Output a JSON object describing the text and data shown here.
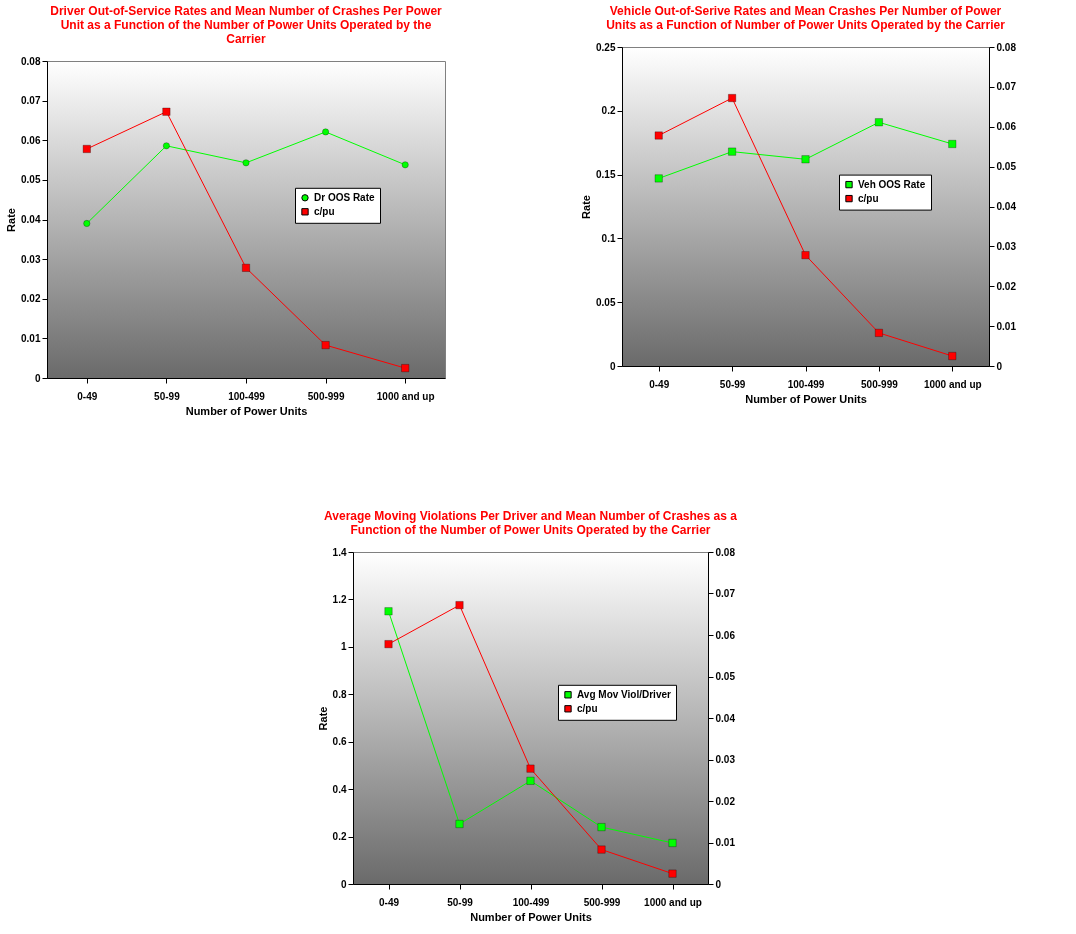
{
  "chart_data": [
    {
      "type": "line",
      "title": "Driver Out-of-Service Rates and Mean Number of Crashes Per Power Unit as a Function of the Number of Power Units Operated by the Carrier",
      "xlabel": "Number of Power Units",
      "ylabel": "Rate",
      "categories": [
        "0-49",
        "50-99",
        "100-499",
        "500-999",
        "1000 and up"
      ],
      "ylim": [
        0,
        0.08
      ],
      "yticks": [
        0,
        0.01,
        0.02,
        0.03,
        0.04,
        0.05,
        0.06,
        0.07,
        0.08
      ],
      "legend": "right",
      "grid": false,
      "series": [
        {
          "name": "Dr OOS Rate",
          "color": "#00ff00",
          "marker": "circle",
          "values": [
            0.039,
            0.0586,
            0.0543,
            0.0621,
            0.0538
          ]
        },
        {
          "name": "c/pu",
          "color": "#ff0000",
          "marker": "square",
          "values": [
            0.0578,
            0.0672,
            0.0278,
            0.0083,
            0.0025
          ]
        }
      ]
    },
    {
      "type": "line",
      "title": "Vehicle Out-of-Serive Rates and Mean Crashes Per Number of Power Units as a Function of Number of Power Units Operated by the Carrier",
      "xlabel": "Number of Power Units",
      "ylabel": "Rate",
      "categories": [
        "0-49",
        "50-99",
        "100-499",
        "500-999",
        "1000 and up"
      ],
      "ylim": [
        0,
        0.25
      ],
      "yticks": [
        0,
        0.05,
        0.1,
        0.15,
        0.2,
        0.25
      ],
      "y2lim": [
        0,
        0.08
      ],
      "y2ticks": [
        0,
        0.01,
        0.02,
        0.03,
        0.04,
        0.05,
        0.06,
        0.07,
        0.08
      ],
      "legend": "right",
      "grid": false,
      "series": [
        {
          "name": "Veh OOS Rate",
          "color": "#00ff00",
          "marker": "square",
          "values": [
            0.147,
            0.168,
            0.162,
            0.191,
            0.174
          ]
        },
        {
          "name": "c/pu",
          "color": "#ff0000",
          "marker": "square",
          "axis": "y2",
          "values": [
            0.0578,
            0.0672,
            0.0278,
            0.0083,
            0.0025
          ]
        }
      ]
    },
    {
      "type": "line",
      "title": "Average Moving Violations Per Driver and Mean Number of Crashes as a Function of the  Number of Power Units Operated by the Carrier",
      "xlabel": "Number of Power Units",
      "ylabel": "Rate",
      "categories": [
        "0-49",
        "50-99",
        "100-499",
        "500-999",
        "1000 and up"
      ],
      "ylim": [
        0,
        1.4
      ],
      "yticks": [
        0,
        0.2,
        0.4,
        0.6,
        0.8,
        1,
        1.2,
        1.4
      ],
      "y2lim": [
        0,
        0.08
      ],
      "y2ticks": [
        0,
        0.01,
        0.02,
        0.03,
        0.04,
        0.05,
        0.06,
        0.07,
        0.08
      ],
      "legend": "right",
      "grid": false,
      "series": [
        {
          "name": "Avg Mov Viol/Driver",
          "color": "#00ff00",
          "marker": "square",
          "values": [
            1.15,
            0.253,
            0.435,
            0.24,
            0.173
          ]
        },
        {
          "name": "c/pu",
          "color": "#ff0000",
          "marker": "square",
          "axis": "y2",
          "values": [
            0.0578,
            0.0672,
            0.0278,
            0.0083,
            0.0025
          ]
        }
      ]
    }
  ]
}
